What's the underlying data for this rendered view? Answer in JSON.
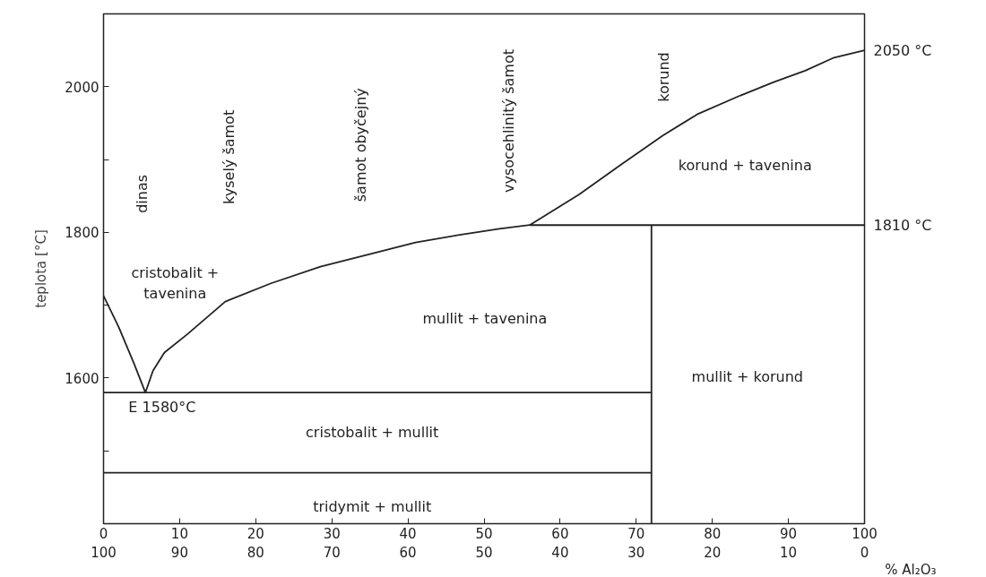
{
  "chart_data": {
    "type": "line",
    "xlabel": "% Al₂O₃",
    "ylabel": "teplota [°C]",
    "xlim": [
      0,
      100
    ],
    "xticks": [
      0,
      10,
      20,
      30,
      40,
      50,
      60,
      70,
      80,
      90,
      100
    ],
    "x2lim": [
      100,
      0
    ],
    "x2ticks": [
      100,
      90,
      80,
      70,
      60,
      50,
      40,
      30,
      20,
      10,
      0
    ],
    "ylim": [
      1400,
      2100
    ],
    "yticks": [
      {
        "value": 1500,
        "label": null
      },
      1600,
      {
        "value": 1700,
        "label": null
      },
      1800,
      {
        "value": 1900,
        "label": null
      },
      2000
    ],
    "y2lim": [
      1400,
      2100
    ],
    "y2ticks": [
      {
        "value": 1810,
        "label": "1810 °C"
      },
      {
        "value": 2050,
        "label": "2050 °C"
      }
    ],
    "grid": false,
    "line_style": "solid",
    "series": [
      {
        "color": "#222222",
        "x": [
          0,
          2,
          4,
          5.5,
          6.5,
          8,
          11,
          16,
          22,
          28.5,
          35,
          41,
          47,
          52,
          56,
          62.5,
          68,
          73.5,
          78,
          83.7,
          88,
          92.2,
          96,
          100
        ],
        "values": [
          1713,
          1670,
          1620,
          1580,
          1610,
          1635,
          1660,
          1705,
          1730,
          1753,
          1770,
          1786,
          1797,
          1805,
          1810,
          1852,
          1893,
          1933,
          1962,
          1988,
          2006,
          2022,
          2040,
          2050
        ]
      },
      {
        "color": "#222222",
        "x": [
          56,
          100
        ],
        "values": [
          1810,
          1810
        ]
      },
      {
        "color": "#222222",
        "x": [
          0,
          72
        ],
        "values": [
          1580,
          1580
        ]
      },
      {
        "color": "#222222",
        "x": [
          0,
          72
        ],
        "values": [
          1470,
          1470
        ]
      },
      {
        "color": "#222222",
        "x": [
          72,
          72
        ],
        "values": [
          1400,
          1810
        ]
      }
    ],
    "annotations": [
      "dinas",
      "kyselý šamot",
      "šamot obyčejný",
      "vysocehlinitý šamot",
      "korund",
      "cristobalit +\ntavenina",
      "mullit + tavenina",
      "E 1580°C",
      "cristobalit + mullit",
      "tridymit + mullit",
      "mullit + korund",
      "korund + tavenina"
    ]
  }
}
